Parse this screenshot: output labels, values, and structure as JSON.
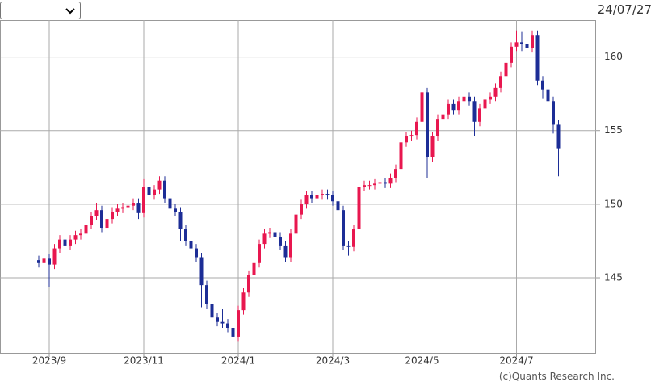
{
  "header": {
    "date": "24/07/27"
  },
  "chart_data": {
    "type": "candlestick",
    "categories": [
      null,
      null,
      "2023/9",
      null,
      null,
      null,
      null,
      null,
      null,
      null,
      null,
      null,
      null,
      null,
      null,
      null,
      null,
      null,
      null,
      null,
      "2023/11",
      null,
      null,
      null,
      null,
      null,
      null,
      null,
      null,
      null,
      null,
      null,
      null,
      null,
      null,
      null,
      null,
      null,
      "2024/1",
      null,
      null,
      null,
      null,
      null,
      null,
      null,
      null,
      null,
      null,
      null,
      null,
      null,
      null,
      null,
      null,
      null,
      "2024/3",
      null,
      null,
      null,
      null,
      null,
      null,
      null,
      null,
      null,
      null,
      null,
      null,
      null,
      null,
      null,
      null,
      "2024/5",
      null,
      null,
      null,
      null,
      null,
      null,
      null,
      null,
      null,
      null,
      null,
      null,
      null,
      null,
      null,
      null,
      null,
      "2024/7",
      null,
      null,
      null,
      null,
      null,
      null,
      null,
      null
    ],
    "open": [
      146.2,
      146.0,
      146.3,
      145.9,
      147.0,
      147.6,
      147.2,
      147.6,
      147.9,
      148.0,
      148.6,
      149.2,
      149.6,
      148.4,
      149.0,
      149.5,
      149.7,
      149.8,
      149.9,
      150.1,
      149.4,
      151.2,
      150.6,
      151.0,
      151.6,
      150.4,
      149.7,
      149.5,
      148.3,
      147.5,
      147.0,
      146.4,
      144.5,
      143.2,
      142.3,
      142.0,
      141.9,
      141.6,
      141.0,
      142.8,
      144.0,
      145.2,
      146.0,
      147.3,
      148.0,
      148.1,
      147.8,
      147.2,
      146.4,
      148.0,
      149.3,
      150.0,
      150.6,
      150.4,
      150.6,
      150.7,
      150.6,
      150.2,
      149.6,
      147.2,
      147.1,
      148.3,
      151.2,
      151.3,
      151.3,
      151.4,
      151.5,
      151.4,
      151.8,
      152.4,
      154.2,
      154.6,
      154.7,
      155.6,
      157.6,
      153.2,
      154.6,
      155.8,
      156.1,
      156.8,
      156.4,
      157.0,
      157.3,
      157.0,
      155.6,
      156.5,
      157.1,
      157.3,
      157.9,
      158.7,
      159.6,
      160.7,
      161.0,
      160.9,
      160.6,
      161.5,
      158.4,
      157.8,
      157.0,
      155.4
    ],
    "high": [
      146.5,
      146.6,
      146.6,
      147.3,
      147.9,
      147.9,
      147.9,
      148.2,
      148.3,
      148.9,
      149.5,
      150.1,
      149.9,
      149.3,
      149.8,
      150.0,
      150.1,
      150.2,
      150.4,
      150.4,
      151.7,
      151.5,
      151.3,
      151.9,
      151.9,
      150.7,
      150.0,
      149.8,
      148.6,
      147.8,
      147.3,
      146.7,
      144.8,
      143.5,
      142.6,
      142.9,
      142.2,
      141.9,
      143.1,
      144.3,
      145.5,
      146.3,
      147.6,
      148.3,
      148.4,
      148.4,
      148.1,
      147.5,
      148.3,
      149.6,
      150.3,
      150.9,
      150.9,
      150.9,
      151.0,
      151.0,
      150.9,
      150.5,
      149.9,
      147.5,
      148.6,
      151.5,
      151.6,
      151.6,
      151.7,
      151.8,
      151.8,
      152.1,
      152.7,
      154.5,
      154.9,
      155.0,
      155.9,
      160.2,
      157.9,
      154.9,
      156.1,
      156.6,
      157.1,
      157.1,
      157.3,
      157.6,
      157.6,
      157.3,
      156.8,
      157.4,
      157.6,
      158.2,
      159.0,
      159.9,
      161.0,
      161.8,
      161.7,
      161.2,
      161.8,
      161.8,
      158.7,
      158.1,
      157.3,
      155.7
    ],
    "low": [
      145.7,
      145.7,
      144.4,
      145.6,
      146.7,
      146.9,
      146.9,
      147.3,
      147.6,
      147.7,
      148.3,
      148.9,
      148.1,
      148.1,
      148.7,
      149.2,
      149.4,
      149.5,
      149.6,
      149.0,
      149.1,
      150.3,
      150.3,
      150.7,
      150.1,
      149.4,
      149.2,
      147.5,
      147.2,
      146.7,
      146.1,
      143.0,
      142.9,
      141.2,
      141.7,
      141.6,
      141.3,
      140.7,
      140.7,
      142.5,
      143.7,
      144.9,
      145.7,
      147.0,
      147.7,
      147.5,
      146.9,
      146.1,
      146.1,
      147.7,
      149.0,
      149.7,
      150.1,
      150.1,
      150.3,
      150.3,
      149.9,
      149.3,
      146.9,
      146.5,
      146.8,
      148.0,
      150.9,
      151.0,
      151.0,
      151.1,
      151.1,
      151.1,
      151.5,
      152.1,
      153.9,
      154.3,
      154.4,
      155.3,
      151.8,
      152.9,
      154.3,
      155.5,
      155.8,
      156.1,
      156.1,
      156.7,
      156.7,
      154.6,
      155.3,
      156.2,
      156.8,
      157.0,
      157.6,
      158.4,
      159.3,
      160.4,
      160.4,
      160.3,
      160.3,
      158.1,
      157.2,
      156.5,
      154.8,
      151.9
    ],
    "close": [
      146.0,
      146.3,
      145.9,
      147.0,
      147.6,
      147.2,
      147.6,
      147.9,
      148.0,
      148.6,
      149.2,
      149.6,
      148.4,
      149.0,
      149.5,
      149.7,
      149.8,
      149.9,
      150.1,
      149.4,
      151.2,
      150.6,
      151.0,
      151.6,
      150.4,
      149.7,
      149.5,
      148.3,
      147.5,
      147.0,
      146.4,
      144.5,
      143.2,
      142.3,
      142.0,
      141.9,
      141.6,
      141.0,
      142.8,
      144.0,
      145.2,
      146.0,
      147.3,
      148.0,
      148.1,
      147.8,
      147.2,
      146.4,
      148.0,
      149.3,
      150.0,
      150.6,
      150.4,
      150.6,
      150.7,
      150.6,
      150.2,
      149.6,
      147.2,
      147.1,
      148.3,
      151.2,
      151.3,
      151.3,
      151.4,
      151.5,
      151.4,
      151.8,
      152.4,
      154.2,
      154.6,
      154.7,
      155.6,
      157.6,
      153.2,
      154.6,
      155.8,
      156.1,
      156.8,
      156.4,
      157.0,
      157.3,
      157.0,
      155.6,
      156.5,
      157.1,
      157.3,
      157.9,
      158.7,
      159.6,
      160.7,
      161.0,
      160.9,
      160.6,
      161.5,
      158.4,
      157.8,
      157.0,
      155.4,
      153.8
    ],
    "up_color": "#e8174f",
    "down_color": "#1c2d96",
    "ylim": [
      139.9,
      162.5
    ],
    "yticks": [
      145,
      150,
      155,
      160
    ],
    "grid": true,
    "y_axis_side": "right"
  },
  "footer": {
    "credit": "(c)Quants Research Inc."
  }
}
